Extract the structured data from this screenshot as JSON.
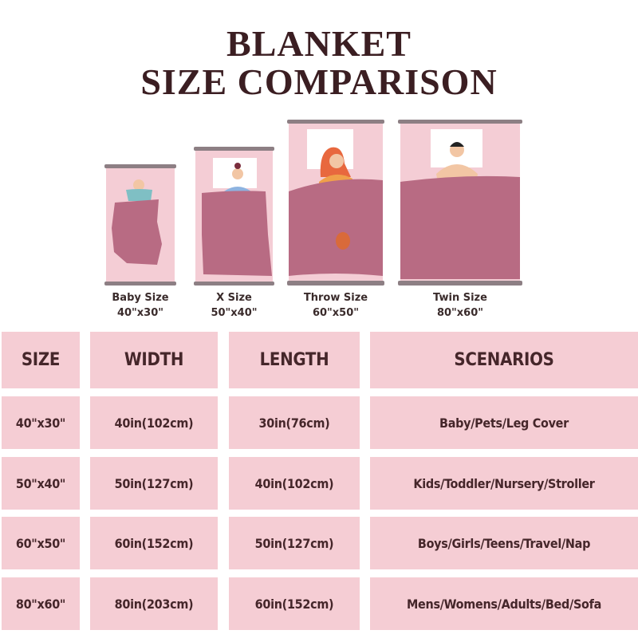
{
  "title": {
    "line1": "BLANKET",
    "line2": "SIZE COMPARISON"
  },
  "blankets": [
    {
      "name": "Baby Size",
      "dims": "40\"x30\""
    },
    {
      "name": "X Size",
      "dims": "50\"x40\""
    },
    {
      "name": "Throw Size",
      "dims": "60\"x50\""
    },
    {
      "name": "Twin Size",
      "dims": "80\"x60\""
    }
  ],
  "table": {
    "headers": [
      "SIZE",
      "WIDTH",
      "LENGTH",
      "SCENARIOS"
    ],
    "rows": [
      [
        "40\"x30\"",
        "40in(102cm)",
        "30in(76cm)",
        "Baby/Pets/Leg Cover"
      ],
      [
        "50\"x40\"",
        "50in(127cm)",
        "40in(102cm)",
        "Kids/Toddler/Nursery/Stroller"
      ],
      [
        "60\"x50\"",
        "60in(152cm)",
        "50in(127cm)",
        "Boys/Girls/Teens/Travel/Nap"
      ],
      [
        "80\"x60\"",
        "80in(203cm)",
        "60in(152cm)",
        "Mens/Womens/Adults/Bed/Sofa"
      ]
    ]
  },
  "colors": {
    "cell": "#f5cdd4",
    "blanket": "#b86b83",
    "bed": "#f4cdd5",
    "rail": "#8d7f84",
    "text": "#45262a"
  }
}
